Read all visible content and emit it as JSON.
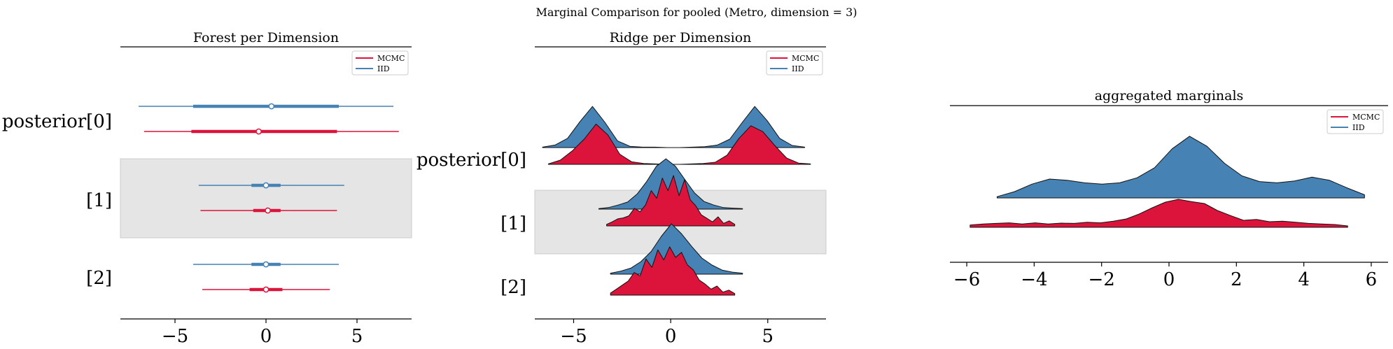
{
  "suptitle": "Marginal Comparison for pooled (Metro, dimension = 3)",
  "colors": {
    "mcmc": "#dc143c",
    "iid": "#4682b4",
    "band": "#e5e5e5"
  },
  "chart_data": [
    {
      "type": "forest",
      "title": "Forest per Dimension",
      "xlabel": "",
      "ylabel": "",
      "xlim": [
        -8,
        8
      ],
      "xticks": [
        -5,
        0,
        5
      ],
      "rows": [
        {
          "label": "posterior[0]",
          "iid": {
            "median": 0.3,
            "hdi_50": [
              -4.0,
              4.0
            ],
            "hdi_94": [
              -7.0,
              7.0
            ]
          },
          "mcmc": {
            "median": -0.4,
            "hdi_50": [
              -4.1,
              3.9
            ],
            "hdi_94": [
              -6.7,
              7.3
            ]
          }
        },
        {
          "label": "[1]",
          "iid": {
            "median": 0.0,
            "hdi_50": [
              -0.8,
              0.8
            ],
            "hdi_94": [
              -3.7,
              4.3
            ]
          },
          "mcmc": {
            "median": 0.1,
            "hdi_50": [
              -0.7,
              0.8
            ],
            "hdi_94": [
              -3.6,
              3.9
            ]
          }
        },
        {
          "label": "[2]",
          "iid": {
            "median": 0.0,
            "hdi_50": [
              -0.8,
              0.8
            ],
            "hdi_94": [
              -4.0,
              4.0
            ]
          },
          "mcmc": {
            "median": 0.0,
            "hdi_50": [
              -0.9,
              0.9
            ],
            "hdi_94": [
              -3.5,
              3.5
            ]
          }
        }
      ],
      "legend": {
        "position": "upper right",
        "entries": [
          "MCMC",
          "IID"
        ]
      }
    },
    {
      "type": "ridgeline",
      "title": "Ridge per Dimension",
      "xlabel": "",
      "ylabel": "",
      "xlim": [
        -7,
        8
      ],
      "xticks": [
        -5,
        0,
        5
      ],
      "rows": [
        {
          "label": "posterior[0]",
          "iid": {
            "range": [
              -6.6,
              6.9
            ],
            "density": [
              0.01,
              0.06,
              0.22,
              0.62,
              0.98,
              0.6,
              0.16,
              0.03,
              0.01,
              0.01,
              0.0,
              0.0,
              0.01,
              0.02,
              0.06,
              0.2,
              0.6,
              0.98,
              0.64,
              0.22,
              0.05,
              0.01
            ]
          },
          "mcmc": {
            "range": [
              -6.3,
              7.2
            ],
            "density": [
              0.01,
              0.1,
              0.32,
              0.6,
              0.96,
              0.7,
              0.24,
              0.06,
              0.02,
              0.01,
              0.0,
              0.0,
              0.01,
              0.02,
              0.05,
              0.22,
              0.62,
              0.92,
              0.78,
              0.45,
              0.15,
              0.03,
              0.01
            ]
          }
        },
        {
          "label": "[1]",
          "iid": {
            "range": [
              -3.7,
              3.7
            ],
            "density": [
              0.01,
              0.03,
              0.08,
              0.14,
              0.3,
              0.55,
              0.85,
              1.0,
              0.85,
              0.58,
              0.32,
              0.15,
              0.08,
              0.03,
              0.02,
              0.01
            ]
          },
          "mcmc": {
            "range": [
              -3.3,
              3.3
            ],
            "density": [
              0.03,
              0.08,
              0.14,
              0.16,
              0.2,
              0.35,
              0.28,
              0.42,
              0.7,
              0.55,
              0.95,
              0.7,
              1.0,
              0.6,
              0.92,
              0.52,
              0.4,
              0.22,
              0.15,
              0.08,
              0.18,
              0.05,
              0.1,
              0.03
            ]
          }
        },
        {
          "label": "[2]",
          "iid": {
            "range": [
              -3.1,
              3.7
            ],
            "density": [
              0.02,
              0.06,
              0.12,
              0.25,
              0.45,
              0.75,
              1.0,
              0.8,
              0.55,
              0.32,
              0.18,
              0.08,
              0.04,
              0.02
            ]
          },
          "mcmc": {
            "range": [
              -3.1,
              3.3
            ],
            "density": [
              0.04,
              0.12,
              0.2,
              0.28,
              0.45,
              0.38,
              0.72,
              0.55,
              0.9,
              0.7,
              0.96,
              0.75,
              0.85,
              0.6,
              0.5,
              0.3,
              0.22,
              0.12,
              0.18,
              0.06,
              0.1,
              0.03
            ]
          }
        }
      ],
      "legend": {
        "position": "upper right",
        "entries": [
          "MCMC",
          "IID"
        ]
      }
    },
    {
      "type": "area",
      "title": "aggregated marginals",
      "xlabel": "",
      "ylabel": "",
      "xlim": [
        -6.5,
        6.5
      ],
      "xticks": [
        -6,
        -4,
        -2,
        0,
        2,
        4,
        6
      ],
      "series": [
        {
          "name": "IID",
          "range": [
            -5.1,
            5.8
          ],
          "density": [
            0.02,
            0.1,
            0.22,
            0.3,
            0.28,
            0.24,
            0.22,
            0.24,
            0.32,
            0.48,
            0.78,
            0.98,
            0.82,
            0.55,
            0.35,
            0.26,
            0.24,
            0.27,
            0.33,
            0.28,
            0.16,
            0.05
          ]
        },
        {
          "name": "MCMC",
          "range": [
            -5.9,
            5.3
          ],
          "density": [
            0.08,
            0.12,
            0.14,
            0.16,
            0.12,
            0.16,
            0.12,
            0.15,
            0.14,
            0.18,
            0.16,
            0.22,
            0.3,
            0.48,
            0.7,
            0.9,
            1.0,
            0.92,
            0.85,
            0.6,
            0.42,
            0.25,
            0.28,
            0.2,
            0.22,
            0.18,
            0.14,
            0.12,
            0.1,
            0.05
          ]
        }
      ],
      "legend": {
        "position": "upper right",
        "entries": [
          "MCMC",
          "IID"
        ]
      }
    }
  ]
}
